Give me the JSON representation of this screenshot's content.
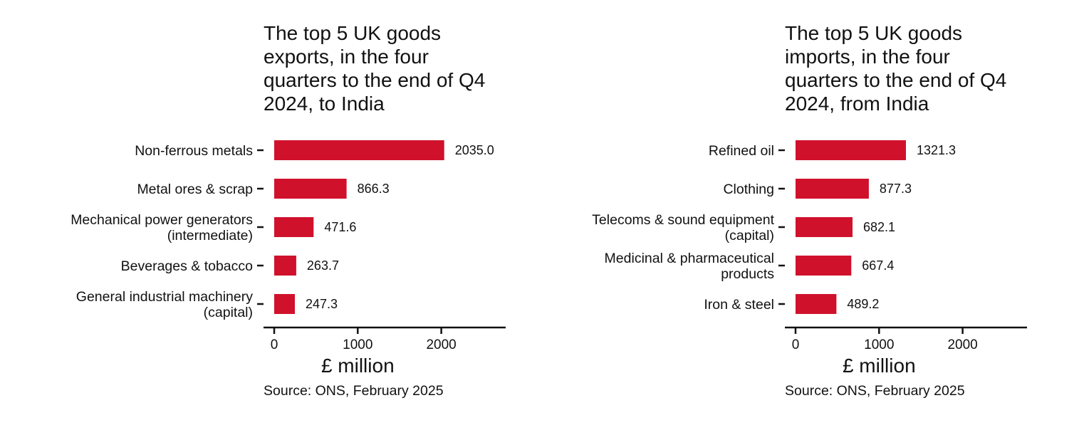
{
  "chart_data": [
    {
      "type": "bar",
      "orientation": "horizontal",
      "title": "The top 5 UK goods exports, in the four quarters to the end of Q4 2024, to India",
      "title_lines": [
        "The top 5 UK goods",
        "exports, in the four",
        "quarters to the end of Q4",
        "2024, to India"
      ],
      "categories": [
        "Non-ferrous metals",
        "Metal ores & scrap",
        "Mechanical power generators (intermediate)",
        "Beverages & tobacco",
        "General industrial machinery (capital)"
      ],
      "category_lines": [
        [
          "Non-ferrous metals"
        ],
        [
          "Metal ores & scrap"
        ],
        [
          "Mechanical power generators",
          "(intermediate)"
        ],
        [
          "Beverages & tobacco"
        ],
        [
          "General industrial machinery",
          "(capital)"
        ]
      ],
      "values": [
        2035.0,
        866.3,
        471.6,
        263.7,
        247.3
      ],
      "value_labels": [
        "2035.0",
        "866.3",
        "471.6",
        "263.7",
        "247.3"
      ],
      "xlabel": "£ million",
      "xlim": [
        0,
        2750
      ],
      "xticks": [
        0,
        1000,
        2000
      ],
      "xtick_labels": [
        "0",
        "1000",
        "2000"
      ],
      "bar_color": "#d0112b",
      "grid": false,
      "source": "Source: ONS, February 2025"
    },
    {
      "type": "bar",
      "orientation": "horizontal",
      "title": "The top 5 UK goods imports, in the four quarters to the end of Q4 2024, from India",
      "title_lines": [
        "The top 5 UK goods",
        "imports, in the four",
        "quarters to the end of Q4",
        "2024, from India"
      ],
      "categories": [
        "Refined oil",
        "Clothing",
        "Telecoms & sound equipment (capital)",
        "Medicinal & pharmaceutical products",
        "Iron & steel"
      ],
      "category_lines": [
        [
          "Refined oil"
        ],
        [
          "Clothing"
        ],
        [
          "Telecoms & sound equipment",
          "(capital)"
        ],
        [
          "Medicinal & pharmaceutical",
          "products"
        ],
        [
          "Iron & steel"
        ]
      ],
      "values": [
        1321.3,
        877.3,
        682.1,
        667.4,
        489.2
      ],
      "value_labels": [
        "1321.3",
        "877.3",
        "682.1",
        "667.4",
        "489.2"
      ],
      "xlabel": "£ million",
      "xlim": [
        0,
        2750
      ],
      "xticks": [
        0,
        1000,
        2000
      ],
      "xtick_labels": [
        "0",
        "1000",
        "2000"
      ],
      "bar_color": "#d0112b",
      "grid": false,
      "source": "Source: ONS, February 2025"
    }
  ]
}
